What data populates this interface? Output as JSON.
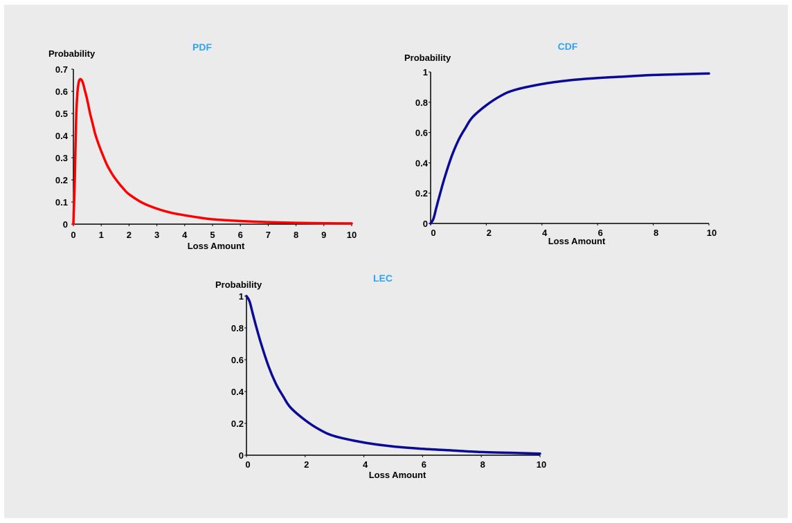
{
  "chart_data": [
    {
      "type": "line",
      "title": "PDF",
      "xlabel": "Loss Amount",
      "ylabel": "Probability",
      "xlim": [
        0,
        10
      ],
      "ylim": [
        0,
        0.7
      ],
      "xticks": [
        "0",
        "1",
        "2",
        "3",
        "4",
        "5",
        "6",
        "7",
        "8",
        "9",
        "10"
      ],
      "yticks": [
        "0",
        "0.1",
        "0.2",
        "0.3",
        "0.4",
        "0.5",
        "0.6",
        "0.7"
      ],
      "color": "#ff0000",
      "series": [
        {
          "x": [
            0,
            0.05,
            0.1,
            0.15,
            0.2,
            0.25,
            0.3,
            0.35,
            0.4,
            0.5,
            0.6,
            0.7,
            0.8,
            1.0,
            1.2,
            1.4,
            1.6,
            1.8,
            2.0,
            2.5,
            3.0,
            3.5,
            4.0,
            4.5,
            5.0,
            6.0,
            7.0,
            8.0,
            9.0,
            10.0
          ],
          "y": [
            0.0,
            0.2,
            0.48,
            0.6,
            0.645,
            0.655,
            0.65,
            0.635,
            0.61,
            0.56,
            0.5,
            0.45,
            0.4,
            0.33,
            0.27,
            0.225,
            0.19,
            0.16,
            0.135,
            0.095,
            0.07,
            0.052,
            0.04,
            0.03,
            0.022,
            0.014,
            0.009,
            0.006,
            0.004,
            0.003
          ]
        }
      ]
    },
    {
      "type": "line",
      "title": "CDF",
      "xlabel": "Loss Amount",
      "ylabel": "Probability",
      "xlim": [
        0,
        10
      ],
      "ylim": [
        0,
        1
      ],
      "xticks": [
        "0",
        "2",
        "4",
        "6",
        "8",
        "10"
      ],
      "yticks": [
        "0",
        "0.2",
        "0.4",
        "0.6",
        "0.8",
        "1"
      ],
      "color": "#0a0a96",
      "series": [
        {
          "x": [
            0,
            0.1,
            0.2,
            0.3,
            0.5,
            0.75,
            1.0,
            1.25,
            1.5,
            2.0,
            2.5,
            3.0,
            4.0,
            5.0,
            6.0,
            7.0,
            8.0,
            9.0,
            10.0
          ],
          "y": [
            0.0,
            0.03,
            0.1,
            0.17,
            0.3,
            0.44,
            0.55,
            0.63,
            0.7,
            0.78,
            0.84,
            0.88,
            0.92,
            0.945,
            0.96,
            0.97,
            0.98,
            0.985,
            0.99
          ]
        }
      ]
    },
    {
      "type": "line",
      "title": "LEC",
      "xlabel": "Loss Amount",
      "ylabel": "Probability",
      "xlim": [
        0,
        10
      ],
      "ylim": [
        0,
        1
      ],
      "xticks": [
        "0",
        "2",
        "4",
        "6",
        "8",
        "10"
      ],
      "yticks": [
        "0",
        "0.2",
        "0.4",
        "0.6",
        "0.8",
        "1"
      ],
      "color": "#0a0a96",
      "series": [
        {
          "x": [
            0,
            0.1,
            0.2,
            0.3,
            0.5,
            0.75,
            1.0,
            1.25,
            1.5,
            2.0,
            2.5,
            3.0,
            4.0,
            5.0,
            6.0,
            7.0,
            8.0,
            9.0,
            10.0
          ],
          "y": [
            1.0,
            0.97,
            0.9,
            0.83,
            0.7,
            0.56,
            0.45,
            0.37,
            0.3,
            0.22,
            0.16,
            0.12,
            0.08,
            0.055,
            0.04,
            0.03,
            0.02,
            0.015,
            0.01
          ]
        }
      ]
    }
  ]
}
